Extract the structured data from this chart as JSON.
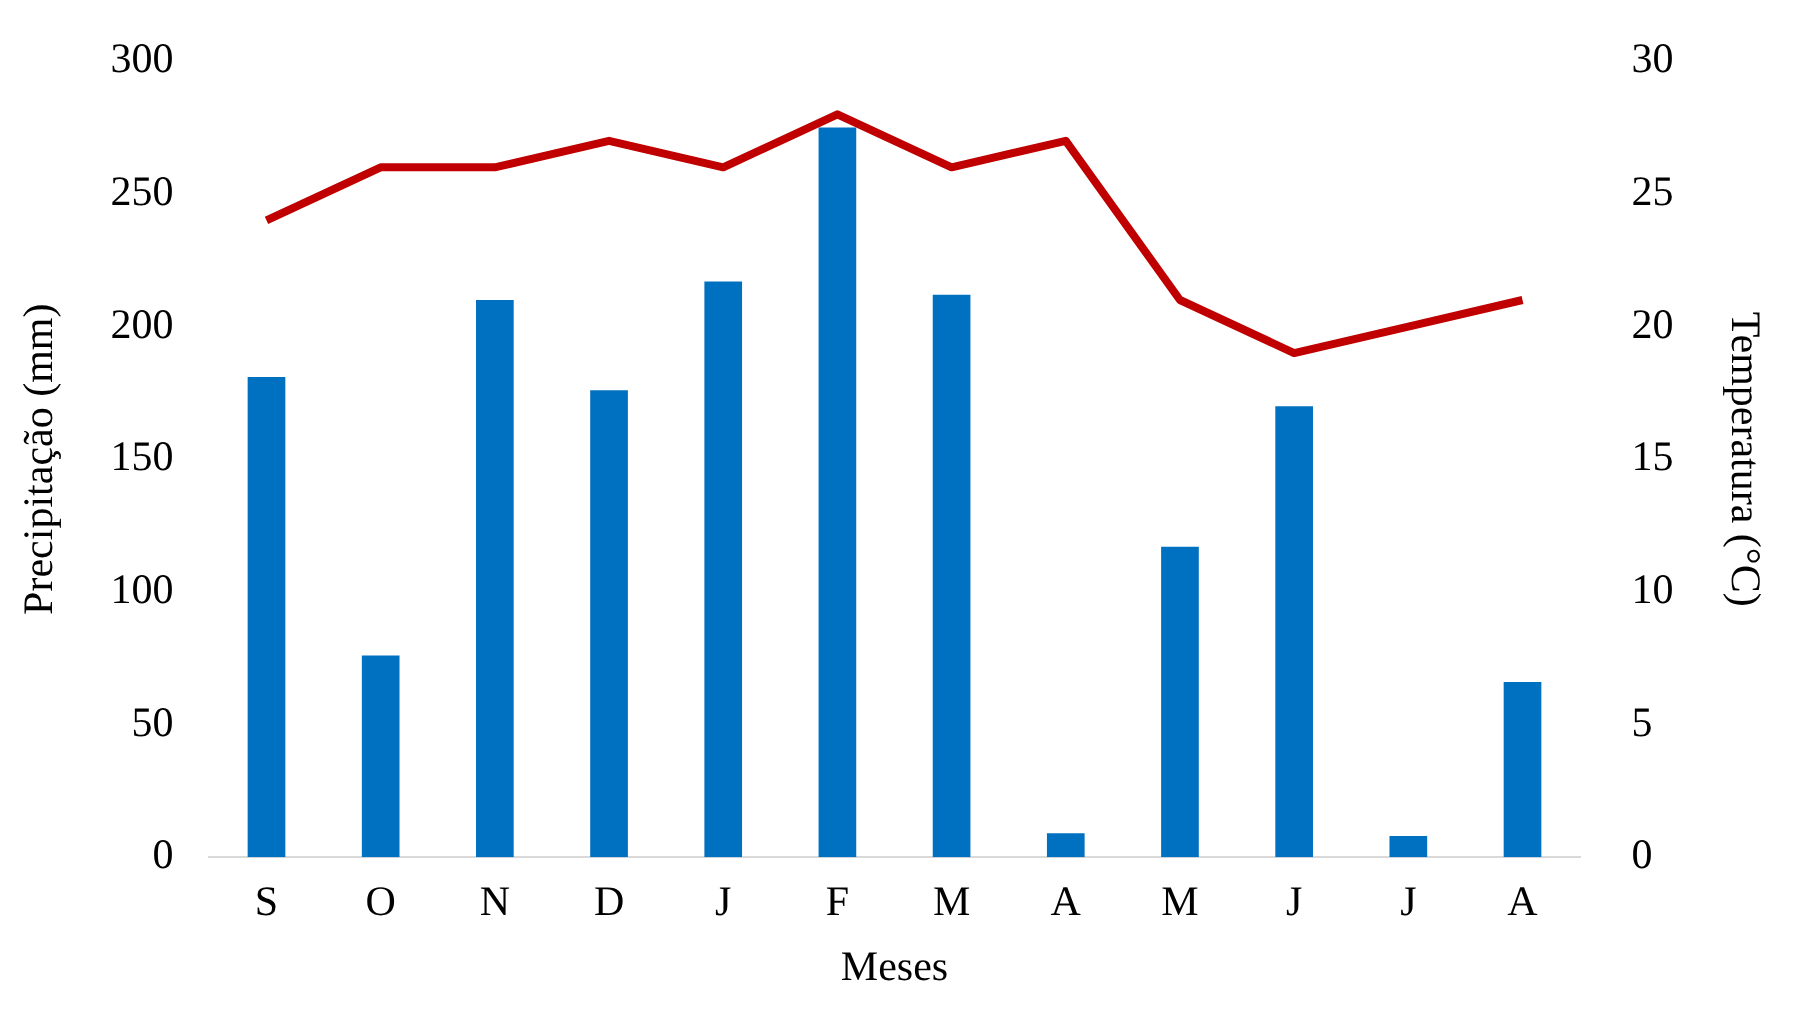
{
  "chart_data": {
    "type": "bar",
    "xlabel": "Meses",
    "ylabel": "Precipitação (mm)",
    "y2label": "Temperatura (°C)",
    "categories": [
      "S",
      "O",
      "N",
      "D",
      "J",
      "F",
      "M",
      "A",
      "M",
      "J",
      "J",
      "A"
    ],
    "series": [
      {
        "color": "#0070c0",
        "values": [
          181,
          76,
          210,
          176,
          217,
          275,
          212,
          9,
          117,
          170,
          8,
          66
        ]
      },
      {
        "type": "line",
        "axis": "y2",
        "color": "#c00000",
        "marker": "none",
        "values": [
          24,
          26,
          26,
          27,
          26,
          28,
          26,
          27,
          21,
          19,
          20,
          21
        ]
      }
    ],
    "ylim": [
      0,
      300
    ],
    "yticks": [
      0,
      50,
      100,
      150,
      200,
      250,
      300
    ],
    "y2lim": [
      0,
      30
    ],
    "y2ticks": [
      0,
      5,
      10,
      15,
      20,
      25,
      30
    ],
    "grid": false,
    "legend": false
  }
}
